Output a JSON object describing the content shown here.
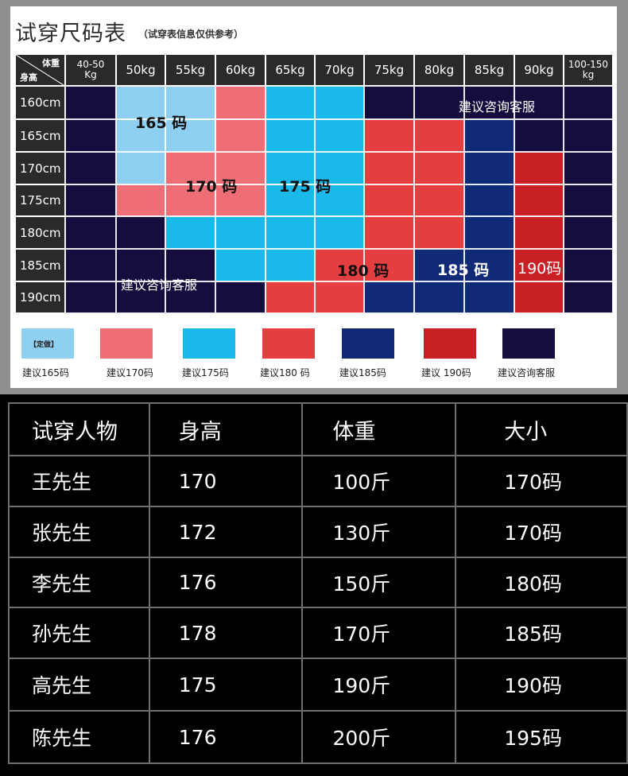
{
  "chart": {
    "title": "试穿尺码表",
    "subtitle": "（试穿表信息仅供参考）",
    "corner_weight": "体重",
    "corner_height": "身高",
    "weight_columns": [
      [
        "40-50",
        "Kg"
      ],
      [
        "50kg"
      ],
      [
        "55kg"
      ],
      [
        "60kg"
      ],
      [
        "65kg"
      ],
      [
        "70kg"
      ],
      [
        "75kg"
      ],
      [
        "80kg"
      ],
      [
        "85kg"
      ],
      [
        "90kg"
      ],
      [
        "100-150",
        "kg"
      ]
    ],
    "height_rows": [
      "160cm",
      "165cm",
      "170cm",
      "175cm",
      "180cm",
      "185cm",
      "190cm"
    ],
    "colors": {
      "light": "#8fd0f2",
      "pink": "#ef6e76",
      "cyan": "#19b9e9",
      "red": "#e53e41",
      "blue": "#102a78",
      "darkred": "#c82025",
      "navy": "#150d3d"
    },
    "cells": [
      [
        "navy",
        "light",
        "light",
        "pink",
        "cyan",
        "cyan",
        "navy",
        "navy",
        "navy",
        "navy",
        "navy"
      ],
      [
        "navy",
        "light",
        "light",
        "pink",
        "cyan",
        "cyan",
        "red",
        "red",
        "blue",
        "navy",
        "navy"
      ],
      [
        "navy",
        "light",
        "pink",
        "pink",
        "cyan",
        "cyan",
        "red",
        "red",
        "blue",
        "darkred",
        "navy"
      ],
      [
        "navy",
        "pink",
        "pink",
        "pink",
        "cyan",
        "cyan",
        "red",
        "red",
        "blue",
        "darkred",
        "navy"
      ],
      [
        "navy",
        "navy",
        "cyan",
        "cyan",
        "cyan",
        "cyan",
        "red",
        "red",
        "blue",
        "darkred",
        "navy"
      ],
      [
        "navy",
        "navy",
        "navy",
        "cyan",
        "cyan",
        "red",
        "red",
        "blue",
        "blue",
        "darkred",
        "navy"
      ],
      [
        "navy",
        "navy",
        "navy",
        "navy",
        "red",
        "red",
        "blue",
        "blue",
        "blue",
        "darkred",
        "navy"
      ]
    ],
    "overlays": {
      "s165": "165 码",
      "s170": "170 码",
      "s175": "175 码",
      "s180": "180 码",
      "s185": "185 码",
      "s190": "190码",
      "consult_top": "建议咨询客服",
      "consult_bottom": "建议咨询客服"
    },
    "legend": [
      {
        "color": "light",
        "label": "建议165码",
        "tag": "【定做】"
      },
      {
        "color": "pink",
        "label": "建议170码"
      },
      {
        "color": "cyan",
        "label": "建议175码"
      },
      {
        "color": "red",
        "label": "建议180 码"
      },
      {
        "color": "blue",
        "label": "建议185码"
      },
      {
        "color": "darkred",
        "label": "建议 190码"
      },
      {
        "color": "navy",
        "label": "建议咨询客服"
      }
    ]
  },
  "trial_table": {
    "headers": [
      "试穿人物",
      "身高",
      "体重",
      "大小"
    ],
    "rows": [
      [
        "王先生",
        "170",
        "100斤",
        "170码"
      ],
      [
        "张先生",
        "172",
        "130斤",
        "170码"
      ],
      [
        "李先生",
        "176",
        "150斤",
        "180码"
      ],
      [
        "孙先生",
        "178",
        "170斤",
        "185码"
      ],
      [
        "高先生",
        "175",
        "190斤",
        "190码"
      ],
      [
        "陈先生",
        "176",
        "200斤",
        "195码"
      ]
    ]
  }
}
